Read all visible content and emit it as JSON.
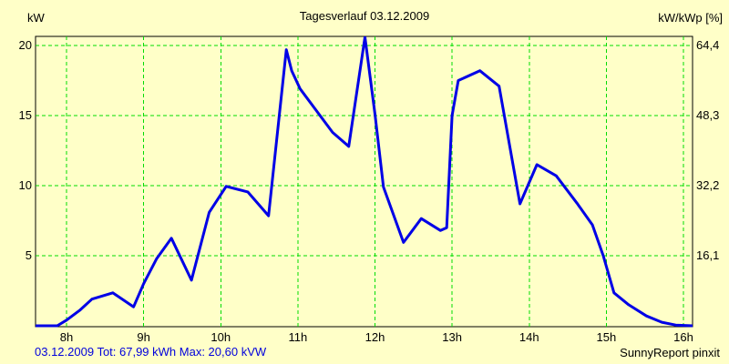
{
  "title": "Tagesverlauf 03.12.2009",
  "footer": {
    "summary": "03.12.2009 Tot: 67,99 kWh Max: 20,60 kVW",
    "credit": "SunnyReport pinxit"
  },
  "colors": {
    "background": "#FFFFC8",
    "grid": "#00DC00",
    "curve": "#0000E6",
    "frame": "#000000",
    "summary_text": "#0000DC"
  },
  "chart_data": {
    "type": "line",
    "title": "Tagesverlauf 03.12.2009",
    "grid": true,
    "y_left": {
      "label": "kW",
      "ticks": [
        5,
        10,
        15,
        20
      ],
      "range": [
        0,
        20.65
      ]
    },
    "y_right": {
      "label": "kW/kWp [%]",
      "ticks": [
        "16,1",
        "32,2",
        "48,3",
        "64,4"
      ]
    },
    "x_axis": {
      "tick_labels": [
        "8h",
        "9h",
        "10h",
        "11h",
        "12h",
        "13h",
        "14h",
        "15h",
        "16h"
      ],
      "tick_hours": [
        8,
        9,
        10,
        11,
        12,
        13,
        14,
        15,
        16
      ],
      "range_hours": [
        7.6,
        16.12
      ]
    },
    "total_kwh": "67,99",
    "max_kw": "20,60",
    "points_hour_kw": [
      [
        7.6,
        0.0
      ],
      [
        7.88,
        0.0
      ],
      [
        8.0,
        0.4
      ],
      [
        8.17,
        1.1
      ],
      [
        8.33,
        1.9
      ],
      [
        8.6,
        2.35
      ],
      [
        8.87,
        1.35
      ],
      [
        9.0,
        3.0
      ],
      [
        9.17,
        4.8
      ],
      [
        9.36,
        6.25
      ],
      [
        9.62,
        3.25
      ],
      [
        9.85,
        8.1
      ],
      [
        10.07,
        9.95
      ],
      [
        10.35,
        9.55
      ],
      [
        10.62,
        7.85
      ],
      [
        10.85,
        19.7
      ],
      [
        10.92,
        18.2
      ],
      [
        11.03,
        16.9
      ],
      [
        11.26,
        15.2
      ],
      [
        11.45,
        13.8
      ],
      [
        11.66,
        12.8
      ],
      [
        11.87,
        20.6
      ],
      [
        12.0,
        15.1
      ],
      [
        12.11,
        9.9
      ],
      [
        12.37,
        5.95
      ],
      [
        12.6,
        7.65
      ],
      [
        12.85,
        6.8
      ],
      [
        12.93,
        7.0
      ],
      [
        13.0,
        15.0
      ],
      [
        13.08,
        17.5
      ],
      [
        13.36,
        18.2
      ],
      [
        13.61,
        17.1
      ],
      [
        13.88,
        8.7
      ],
      [
        14.1,
        11.5
      ],
      [
        14.35,
        10.7
      ],
      [
        14.62,
        8.75
      ],
      [
        14.82,
        7.2
      ],
      [
        14.96,
        5.0
      ],
      [
        15.1,
        2.35
      ],
      [
        15.29,
        1.5
      ],
      [
        15.52,
        0.7
      ],
      [
        15.72,
        0.25
      ],
      [
        15.9,
        0.05
      ],
      [
        16.12,
        0.0
      ]
    ]
  }
}
